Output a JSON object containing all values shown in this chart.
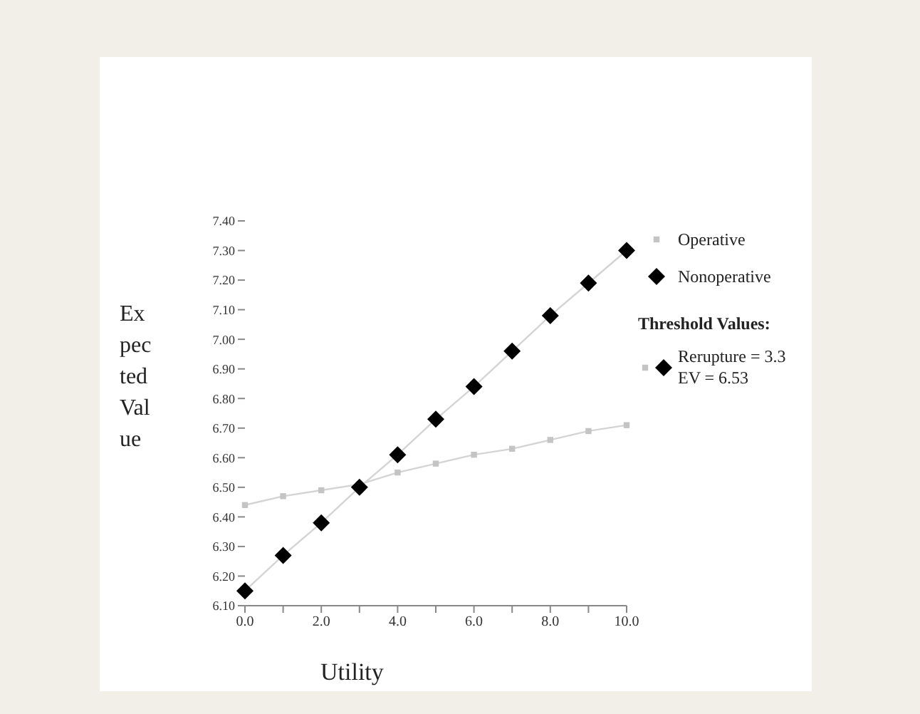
{
  "chart_data": {
    "type": "line",
    "xlabel": "Utility",
    "ylabel": "Expected Value",
    "x": [
      0,
      1,
      2,
      3,
      4,
      5,
      6,
      7,
      8,
      9,
      10
    ],
    "series": [
      {
        "name": "Operative",
        "color": "#c4c4c4",
        "marker": "square",
        "values": [
          6.44,
          6.47,
          6.49,
          6.51,
          6.55,
          6.58,
          6.61,
          6.63,
          6.66,
          6.69,
          6.71
        ]
      },
      {
        "name": "Nonoperative",
        "color": "#000000",
        "marker": "diamond",
        "values": [
          6.15,
          6.27,
          6.38,
          6.5,
          6.61,
          6.73,
          6.84,
          6.96,
          7.08,
          7.19,
          7.3
        ]
      }
    ],
    "xlim": [
      0,
      10
    ],
    "xticks": [
      {
        "value": 0,
        "label": "0.0"
      },
      {
        "value": 1,
        "label": null
      },
      {
        "value": 2,
        "label": "2.0"
      },
      {
        "value": 3,
        "label": null
      },
      {
        "value": 4,
        "label": "4.0"
      },
      {
        "value": 5,
        "label": null
      },
      {
        "value": 6,
        "label": "6.0"
      },
      {
        "value": 7,
        "label": null
      },
      {
        "value": 8,
        "label": "8.0"
      },
      {
        "value": 9,
        "label": null
      },
      {
        "value": 10,
        "label": "10.0"
      }
    ],
    "ylim": [
      6.1,
      7.4
    ],
    "yticks": [
      {
        "value": 6.1,
        "label": "6.10"
      },
      {
        "value": 6.2,
        "label": "6.20"
      },
      {
        "value": 6.3,
        "label": "6.30"
      },
      {
        "value": 6.4,
        "label": "6.40"
      },
      {
        "value": 6.5,
        "label": "6.50"
      },
      {
        "value": 6.6,
        "label": "6.60"
      },
      {
        "value": 6.7,
        "label": "6.70"
      },
      {
        "value": 6.8,
        "label": "6.80"
      },
      {
        "value": 6.9,
        "label": "6.90"
      },
      {
        "value": 7,
        "label": "7.00"
      },
      {
        "value": 7.1,
        "label": "7.10"
      },
      {
        "value": 7.2,
        "label": "7.20"
      },
      {
        "value": 7.3,
        "label": "7.30"
      },
      {
        "value": 7.4,
        "label": "7.40"
      }
    ],
    "legend": "top right",
    "grid": false,
    "annotations": [
      "Threshold Values:",
      "Rerupture = 3.3",
      "EV = 6.53"
    ]
  }
}
